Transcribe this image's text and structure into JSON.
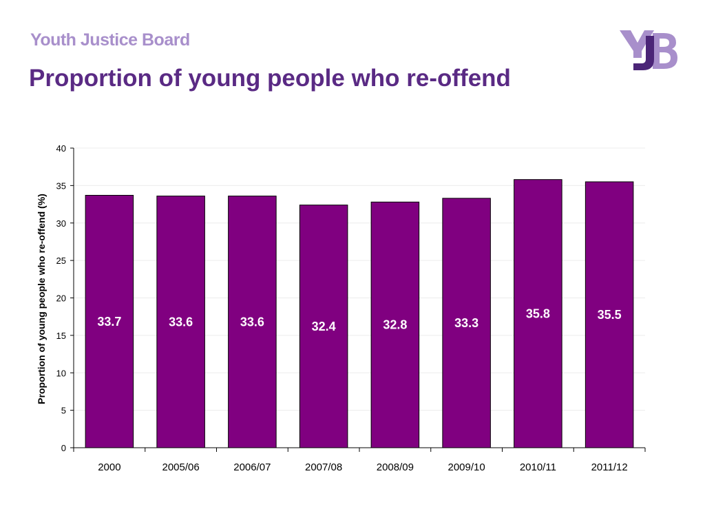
{
  "slide": {
    "brand": "Youth Justice Board",
    "title": "Proportion of young people who re-offend"
  },
  "logo": {
    "icon": "yjb-logo-icon",
    "colors": {
      "light": "#a88fcb",
      "dark": "#4b2577"
    }
  },
  "chart_data": {
    "type": "bar",
    "categories": [
      "2000",
      "2005/06",
      "2006/07",
      "2007/08",
      "2008/09",
      "2009/10",
      "2010/11",
      "2011/12"
    ],
    "values": [
      33.7,
      33.6,
      33.6,
      32.4,
      32.8,
      33.3,
      35.8,
      35.5
    ],
    "data_labels": [
      "33.7",
      "33.6",
      "33.6",
      "32.4",
      "32.8",
      "33.3",
      "35.8",
      "35.5"
    ],
    "title": "",
    "xlabel": "",
    "ylabel": "Proportion of young people who re-offend (%)",
    "ylim": [
      0,
      40
    ],
    "yticks": [
      0,
      5,
      10,
      15,
      20,
      25,
      30,
      35,
      40
    ],
    "grid": true,
    "legend": "none",
    "bar_color": "#800080",
    "label_color": "#ffffff"
  }
}
